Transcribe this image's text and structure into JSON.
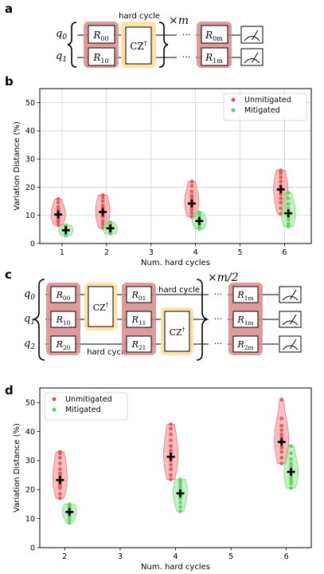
{
  "panels": {
    "a": {
      "label": "a",
      "qubits": [
        "q",
        "q"
      ],
      "qubit_subs": [
        "0",
        "1"
      ],
      "gates_first": [
        {
          "base": "R",
          "sub": "00"
        },
        {
          "base": "R",
          "sub": "10"
        }
      ],
      "cz": {
        "base": "CZ",
        "sup": "†"
      },
      "hard_cycle_label": "hard cycle",
      "repeat": {
        "times": "×",
        "var": "m"
      },
      "dots": "···",
      "gates_last": [
        {
          "base": "R",
          "sub": "0m"
        },
        {
          "base": "R",
          "sub": "1m"
        }
      ]
    },
    "c": {
      "label": "c",
      "qubits": [
        "q",
        "q",
        "q"
      ],
      "qubit_subs": [
        "0",
        "1",
        "2"
      ],
      "gates_first": [
        {
          "base": "R",
          "sub": "00"
        },
        {
          "base": "R",
          "sub": "10"
        },
        {
          "base": "R",
          "sub": "20"
        }
      ],
      "gates_second": [
        {
          "base": "R",
          "sub": "01"
        },
        {
          "base": "R",
          "sub": "11"
        },
        {
          "base": "R",
          "sub": "21"
        }
      ],
      "cz": {
        "base": "CZ",
        "sup": "†"
      },
      "hard_cycle_label": "hard cycle",
      "repeat": {
        "times": "×",
        "var": "m/2"
      },
      "dots": "···",
      "gates_last": [
        {
          "base": "R",
          "sub": "1m"
        },
        {
          "base": "R",
          "sub": "1m"
        },
        {
          "base": "R",
          "sub": "2m"
        }
      ]
    }
  },
  "colors": {
    "unmitigated": "#e84a4a",
    "mitigated": "#55d155",
    "unmit_fill": "#f08a8a",
    "mit_fill": "#98e098",
    "gate_highlight_red": "#d98a8a",
    "gate_highlight_yellow": "#fbe3a0"
  },
  "chart_data": [
    {
      "panel_label": "b",
      "type": "scatter",
      "xlabel": "Num. hard cycles",
      "ylabel": "Variation Distance (%)",
      "xlim": [
        0.5,
        6.6
      ],
      "ylim": [
        0,
        55
      ],
      "xticks": [
        1,
        2,
        3,
        4,
        5,
        6
      ],
      "yticks": [
        0,
        10,
        20,
        30,
        40,
        50
      ],
      "grid": true,
      "legend_position": "top-right",
      "series": [
        {
          "name": "Unmitigated",
          "x": [
            1,
            2,
            4,
            6
          ],
          "mean": [
            10.3,
            11.2,
            14.2,
            19.2
          ],
          "points": [
            [
              6.5,
              7.5,
              8.2,
              9.0,
              9.8,
              10.5,
              11.3,
              12.0,
              13.0,
              14.5,
              15.8
            ],
            [
              5.5,
              6.8,
              8.0,
              9.5,
              10.5,
              11.5,
              12.5,
              13.5,
              15.0,
              16.3,
              17.2
            ],
            [
              9.5,
              10.8,
              12.0,
              13.2,
              14.2,
              15.0,
              16.0,
              17.0,
              18.5,
              20.5,
              22.0
            ],
            [
              10.5,
              12.5,
              14.5,
              16.0,
              17.5,
              18.5,
              19.5,
              20.5,
              22.0,
              23.5,
              25.0,
              26.0
            ]
          ]
        },
        {
          "name": "Mitigated",
          "x": [
            1,
            2,
            4,
            6
          ],
          "mean": [
            4.7,
            5.4,
            8.0,
            10.7
          ],
          "points": [
            [
              2.8,
              3.5,
              4.0,
              4.5,
              5.0,
              5.5,
              6.0,
              6.5
            ],
            [
              3.5,
              4.0,
              4.5,
              5.0,
              5.5,
              6.0,
              6.5,
              7.5
            ],
            [
              5.2,
              6.0,
              7.0,
              7.5,
              8.0,
              8.5,
              9.0,
              10.0,
              11.0
            ],
            [
              6.0,
              7.0,
              8.5,
              9.5,
              10.5,
              11.5,
              12.5,
              14.0,
              16.0,
              18.0
            ]
          ]
        }
      ]
    },
    {
      "panel_label": "d",
      "type": "scatter",
      "xlabel": "Num. hard cycles",
      "ylabel": "Variation Distance (%)",
      "xlim": [
        1.55,
        6.45
      ],
      "ylim": [
        0,
        55
      ],
      "xticks": [
        2,
        3,
        4,
        5,
        6
      ],
      "yticks": [
        0,
        10,
        20,
        30,
        40,
        50
      ],
      "grid": false,
      "legend_position": "top-left",
      "series": [
        {
          "name": "Unmitigated",
          "x": [
            2,
            4,
            6
          ],
          "mean": [
            23.3,
            31.3,
            36.4
          ],
          "points": [
            [
              17.0,
              18.5,
              20.5,
              21.5,
              22.5,
              23.5,
              24.5,
              25.5,
              27.0,
              29.0,
              31.0,
              32.5,
              33.0
            ],
            [
              23.5,
              25.0,
              27.0,
              28.5,
              30.0,
              31.0,
              32.5,
              33.5,
              35.0,
              37.0,
              39.0,
              41.0,
              42.5
            ],
            [
              29.0,
              31.0,
              33.0,
              34.5,
              36.0,
              37.0,
              38.0,
              39.0,
              40.5,
              42.0,
              44.5,
              51.0
            ]
          ]
        },
        {
          "name": "Mitigated",
          "x": [
            2,
            4,
            6
          ],
          "mean": [
            12.3,
            18.7,
            26.1
          ],
          "points": [
            [
              8.5,
              9.5,
              10.5,
              11.5,
              12.0,
              12.5,
              13.0,
              13.5,
              14.0,
              14.5,
              15.0
            ],
            [
              12.5,
              14.0,
              15.5,
              17.0,
              18.0,
              19.0,
              20.0,
              21.0,
              22.0,
              23.0,
              23.5
            ],
            [
              20.5,
              22.0,
              23.0,
              24.0,
              25.0,
              26.0,
              27.0,
              28.0,
              29.0,
              30.5,
              32.5,
              35.0
            ]
          ]
        }
      ]
    }
  ]
}
